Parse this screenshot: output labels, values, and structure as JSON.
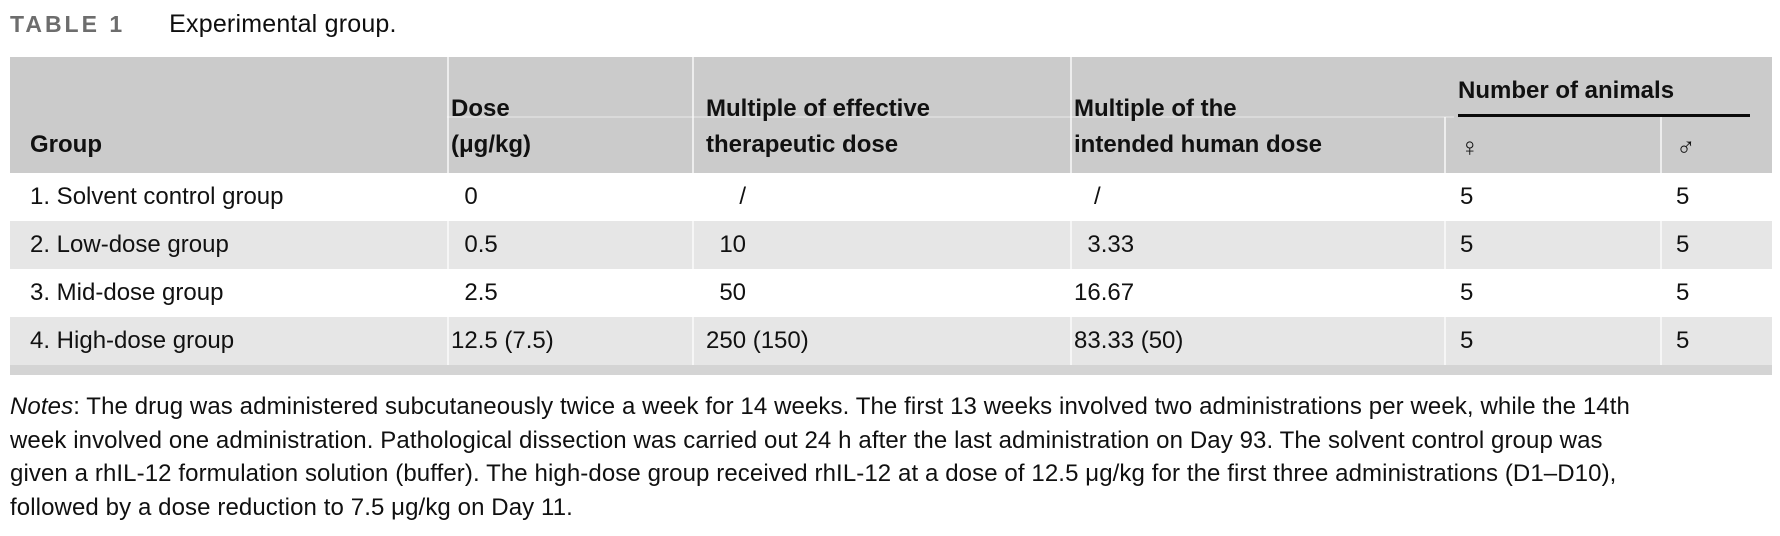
{
  "title": {
    "label": "TABLE 1",
    "caption": "Experimental group."
  },
  "table": {
    "headers": {
      "group": "Group",
      "dose": "Dose\n(μg/kg)",
      "mult_eff": "Multiple of effective\ntherapeutic dose",
      "mult_int": "Multiple of the\nintended human dose",
      "animals_group": "Number of animals",
      "female": "♀",
      "male": "♂"
    },
    "rows": [
      {
        "group": "1. Solvent control group",
        "dose": "0",
        "mult_eff": "/",
        "mult_int": "/",
        "female": "5",
        "male": "5"
      },
      {
        "group": "2. Low-dose group",
        "dose": "0.5",
        "mult_eff": "10",
        "mult_int": "3.33",
        "female": "5",
        "male": "5"
      },
      {
        "group": "3. Mid-dose group",
        "dose": "2.5",
        "mult_eff": "50",
        "mult_int": "16.67",
        "female": "5",
        "male": "5"
      },
      {
        "group": "4. High-dose group",
        "dose": "12.5 (7.5)",
        "mult_eff": "250 (150)",
        "mult_int": "83.33 (50)",
        "female": "5",
        "male": "5"
      }
    ]
  },
  "notes": {
    "label": "Notes",
    "text": ": The drug was administered subcutaneously twice a week for 14 weeks. The first 13 weeks involved two administrations per week, while the 14th\nweek involved one administration. Pathological dissection was carried out 24 h after the last administration on Day 93. The solvent control group was\ngiven a rhIL-12 formulation solution (buffer). The high-dose group received rhIL-12 at a dose of 12.5 μg/kg for the first three administrations (D1–D10),\nfollowed by a dose reduction to 7.5 μg/kg on Day 11."
  },
  "colors": {
    "header_bg": "#cbcbcb",
    "row_alt_bg": "#e6e6e6",
    "bottom_bar": "#d4d4d4",
    "title_label": "#6d6d6d",
    "rule_black": "#0a0a0a"
  }
}
